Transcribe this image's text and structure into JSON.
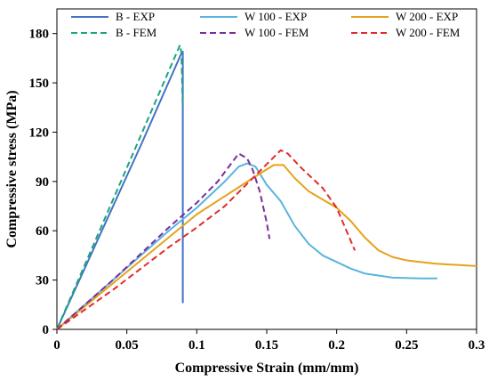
{
  "chart_data": {
    "type": "line",
    "xlabel": "Compressive Strain (mm/mm)",
    "ylabel": "Compressive stress (MPa)",
    "xlim": [
      0,
      0.3
    ],
    "ylim": [
      0,
      195
    ],
    "x_ticks": [
      {
        "value": 0,
        "label": "0"
      },
      {
        "value": 0.05,
        "label": "0.05"
      },
      {
        "value": 0.1,
        "label": "0.1"
      },
      {
        "value": 0.15,
        "label": "0.15"
      },
      {
        "value": 0.2,
        "label": "0.2"
      },
      {
        "value": 0.25,
        "label": "0.25"
      },
      {
        "value": 0.3,
        "label": "0.3"
      }
    ],
    "y_ticks": [
      {
        "value": 0,
        "label": "0"
      },
      {
        "value": 30,
        "label": "30"
      },
      {
        "value": 60,
        "label": "60"
      },
      {
        "value": 90,
        "label": "90"
      },
      {
        "value": 120,
        "label": "120"
      },
      {
        "value": 150,
        "label": "150"
      },
      {
        "value": 180,
        "label": "180"
      }
    ],
    "grid": false,
    "legend_position": "top",
    "series": [
      {
        "name": "B - EXP",
        "color": "#4472c4",
        "dash": "solid",
        "points": [
          [
            0,
            0
          ],
          [
            0.03,
            56
          ],
          [
            0.06,
            112
          ],
          [
            0.089,
            168
          ],
          [
            0.09,
            169
          ],
          [
            0.09,
            16
          ]
        ]
      },
      {
        "name": "W 100 - EXP",
        "color": "#5ab4dc",
        "dash": "solid",
        "points": [
          [
            0,
            0
          ],
          [
            0.04,
            30
          ],
          [
            0.08,
            60
          ],
          [
            0.1,
            74
          ],
          [
            0.12,
            90
          ],
          [
            0.13,
            99
          ],
          [
            0.136,
            101
          ],
          [
            0.142,
            99
          ],
          [
            0.15,
            88
          ],
          [
            0.16,
            78
          ],
          [
            0.17,
            63
          ],
          [
            0.18,
            52
          ],
          [
            0.19,
            45
          ],
          [
            0.2,
            41
          ],
          [
            0.21,
            37
          ],
          [
            0.22,
            34
          ],
          [
            0.24,
            31.5
          ],
          [
            0.26,
            31
          ],
          [
            0.272,
            31
          ]
        ]
      },
      {
        "name": "W 200 - EXP",
        "color": "#e6a219",
        "dash": "solid",
        "points": [
          [
            0,
            0
          ],
          [
            0.04,
            28
          ],
          [
            0.08,
            56
          ],
          [
            0.1,
            70
          ],
          [
            0.12,
            81
          ],
          [
            0.14,
            92
          ],
          [
            0.155,
            100
          ],
          [
            0.162,
            100
          ],
          [
            0.17,
            92
          ],
          [
            0.18,
            84
          ],
          [
            0.2,
            74
          ],
          [
            0.21,
            66
          ],
          [
            0.22,
            56
          ],
          [
            0.23,
            48
          ],
          [
            0.24,
            44
          ],
          [
            0.25,
            42
          ],
          [
            0.27,
            40
          ],
          [
            0.3,
            38.5
          ]
        ]
      },
      {
        "name": "B - FEM",
        "color": "#1aa57e",
        "dash": "dashed",
        "points": [
          [
            0,
            0
          ],
          [
            0.03,
            59
          ],
          [
            0.06,
            118
          ],
          [
            0.088,
            173
          ],
          [
            0.089,
            168
          ],
          [
            0.09,
            135
          ]
        ]
      },
      {
        "name": "W 100 - FEM",
        "color": "#7a2d9e",
        "dash": "dashed",
        "points": [
          [
            0,
            0
          ],
          [
            0.04,
            30
          ],
          [
            0.08,
            62
          ],
          [
            0.1,
            77
          ],
          [
            0.115,
            90
          ],
          [
            0.13,
            107
          ],
          [
            0.136,
            104
          ],
          [
            0.14,
            97
          ],
          [
            0.145,
            84
          ],
          [
            0.15,
            65
          ],
          [
            0.152,
            55
          ]
        ]
      },
      {
        "name": "W 200 - FEM",
        "color": "#e02b2b",
        "dash": "dashed",
        "points": [
          [
            0,
            0
          ],
          [
            0.04,
            24
          ],
          [
            0.08,
            50
          ],
          [
            0.1,
            62
          ],
          [
            0.12,
            75
          ],
          [
            0.14,
            92
          ],
          [
            0.16,
            109
          ],
          [
            0.165,
            107
          ],
          [
            0.175,
            98
          ],
          [
            0.19,
            86
          ],
          [
            0.2,
            74
          ],
          [
            0.205,
            64
          ],
          [
            0.213,
            48
          ]
        ]
      }
    ]
  }
}
